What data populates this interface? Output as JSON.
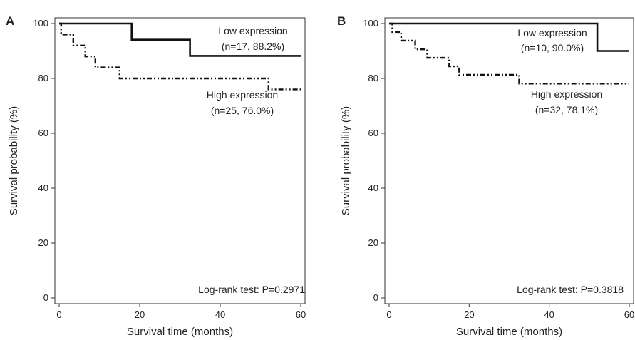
{
  "chart_data": [
    {
      "type": "line",
      "panel": "A",
      "xlabel": "Survival time (months)",
      "ylabel": "Survival probability (%)",
      "xlim": [
        0,
        60
      ],
      "ylim": [
        0,
        100
      ],
      "xticks": [
        0,
        20,
        40,
        60
      ],
      "yticks": [
        0,
        20,
        40,
        60,
        80,
        100
      ],
      "series": [
        {
          "label_lines": [
            "Low expression",
            "(n=17, 88.2%)"
          ],
          "style": "solid",
          "points": [
            [
              0,
              100
            ],
            [
              18,
              100
            ],
            [
              18,
              94.1
            ],
            [
              32.5,
              94.1
            ],
            [
              32.5,
              88.2
            ],
            [
              60,
              88.2
            ]
          ]
        },
        {
          "label_lines": [
            "High expression",
            "(n=25, 76.0%)"
          ],
          "style": "dash-dot-dot",
          "points": [
            [
              0,
              100
            ],
            [
              0.5,
              100
            ],
            [
              0.5,
              96
            ],
            [
              3.5,
              96
            ],
            [
              3.5,
              92
            ],
            [
              6.5,
              92
            ],
            [
              6.5,
              88
            ],
            [
              9,
              88
            ],
            [
              9,
              84
            ],
            [
              15,
              84
            ],
            [
              15,
              80
            ],
            [
              52,
              80
            ],
            [
              52,
              76
            ],
            [
              60,
              76
            ]
          ]
        }
      ],
      "annotation": "Log-rank test: P=0.2971"
    },
    {
      "type": "line",
      "panel": "B",
      "xlabel": "Survival time (months)",
      "ylabel": "Survival probability (%)",
      "xlim": [
        0,
        60
      ],
      "ylim": [
        0,
        100
      ],
      "xticks": [
        0,
        20,
        40,
        60
      ],
      "yticks": [
        0,
        20,
        40,
        60,
        80,
        100
      ],
      "series": [
        {
          "label_lines": [
            "Low expression",
            "(n=10, 90.0%)"
          ],
          "style": "solid",
          "points": [
            [
              0,
              100
            ],
            [
              52,
              100
            ],
            [
              52,
              90
            ],
            [
              60,
              90
            ]
          ]
        },
        {
          "label_lines": [
            "High expression",
            "(n=32, 78.1%)"
          ],
          "style": "dash-dot-dot",
          "points": [
            [
              0,
              100
            ],
            [
              0.8,
              100
            ],
            [
              0.8,
              96.9
            ],
            [
              3,
              96.9
            ],
            [
              3,
              93.8
            ],
            [
              6.5,
              93.8
            ],
            [
              6.5,
              90.6
            ],
            [
              9.5,
              90.6
            ],
            [
              9.5,
              87.5
            ],
            [
              15,
              87.5
            ],
            [
              15,
              84.4
            ],
            [
              17.5,
              84.4
            ],
            [
              17.5,
              81.3
            ],
            [
              32.5,
              81.3
            ],
            [
              32.5,
              78.1
            ],
            [
              60,
              78.1
            ]
          ]
        }
      ],
      "annotation": "Log-rank test: P=0.3818"
    }
  ]
}
